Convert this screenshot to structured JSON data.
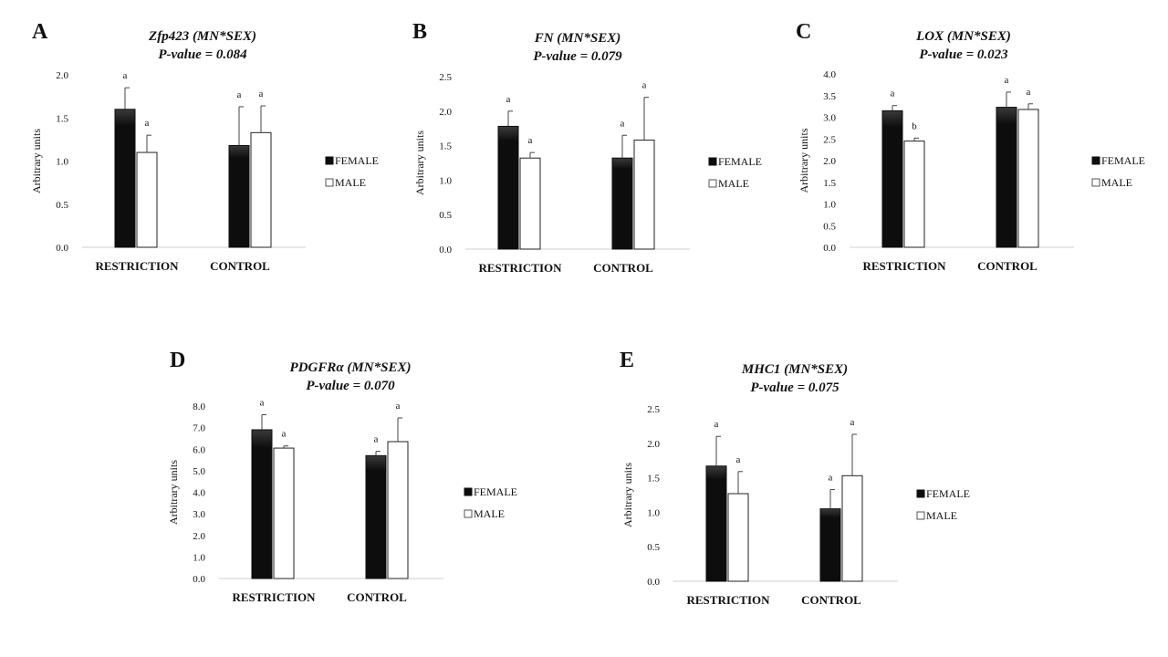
{
  "chart_data": [
    {
      "type": "bar",
      "panel": "A",
      "title": "Zfp423 (MN*SEX)",
      "subtitle": "P-value = 0.084",
      "ylabel": "Arbitrary units",
      "xlabel": "",
      "categories": [
        "RESTRICTION",
        "CONTROL"
      ],
      "ylim": [
        0,
        2.0
      ],
      "yticks": [
        "0.0",
        "0.5",
        "1.0",
        "1.5",
        "2.0"
      ],
      "series": [
        {
          "name": "FEMALE",
          "values": [
            1.6,
            1.18
          ],
          "errors": [
            0.25,
            0.45
          ],
          "labels": [
            "a",
            "a"
          ]
        },
        {
          "name": "MALE",
          "values": [
            1.1,
            1.33
          ],
          "errors": [
            0.2,
            0.31
          ],
          "labels": [
            "a",
            "a"
          ]
        }
      ],
      "legend": [
        "FEMALE",
        "MALE"
      ],
      "grid": false,
      "legend_position": "right"
    },
    {
      "type": "bar",
      "panel": "B",
      "title": "FN (MN*SEX)",
      "subtitle": "P-value = 0.079",
      "ylabel": "Arbitrary units",
      "xlabel": "",
      "categories": [
        "RESTRICTION",
        "CONTROL"
      ],
      "ylim": [
        0,
        2.5
      ],
      "yticks": [
        "0.0",
        "0.5",
        "1.0",
        "1.5",
        "2.0",
        "2.5"
      ],
      "series": [
        {
          "name": "FEMALE",
          "values": [
            1.78,
            1.32
          ],
          "errors": [
            0.22,
            0.33
          ],
          "labels": [
            "a",
            "a"
          ]
        },
        {
          "name": "MALE",
          "values": [
            1.32,
            1.58
          ],
          "errors": [
            0.08,
            0.62
          ],
          "labels": [
            "a",
            "a"
          ]
        }
      ],
      "legend": [
        "FEMALE",
        "MALE"
      ],
      "grid": false,
      "legend_position": "right"
    },
    {
      "type": "bar",
      "panel": "C",
      "title": "LOX (MN*SEX)",
      "subtitle": "P-value = 0.023",
      "ylabel": "Arbitrary units",
      "xlabel": "",
      "categories": [
        "RESTRICTION",
        "CONTROL"
      ],
      "ylim": [
        0,
        4.0
      ],
      "yticks": [
        "0.0",
        "0.5",
        "1.0",
        "1.5",
        "2.0",
        "2.5",
        "3.0",
        "3.5",
        "4.0"
      ],
      "series": [
        {
          "name": "FEMALE",
          "values": [
            3.15,
            3.23
          ],
          "errors": [
            0.12,
            0.35
          ],
          "labels": [
            "a",
            "a"
          ]
        },
        {
          "name": "MALE",
          "values": [
            2.45,
            3.18
          ],
          "errors": [
            0.07,
            0.13
          ],
          "labels": [
            "b",
            "a"
          ]
        }
      ],
      "legend": [
        "FEMALE",
        "MALE"
      ],
      "grid": false,
      "legend_position": "right"
    },
    {
      "type": "bar",
      "panel": "D",
      "title": "PDGFRα (MN*SEX)",
      "subtitle": "P-value = 0.070",
      "ylabel": "Arbitrary units",
      "xlabel": "",
      "categories": [
        "RESTRICTION",
        "CONTROL"
      ],
      "ylim": [
        0,
        8.0
      ],
      "yticks": [
        "0.0",
        "1.0",
        "2.0",
        "3.0",
        "4.0",
        "5.0",
        "6.0",
        "7.0",
        "8.0"
      ],
      "series": [
        {
          "name": "FEMALE",
          "values": [
            6.9,
            5.7
          ],
          "errors": [
            0.7,
            0.2
          ],
          "labels": [
            "a",
            "a"
          ]
        },
        {
          "name": "MALE",
          "values": [
            6.05,
            6.35
          ],
          "errors": [
            0.1,
            1.1
          ],
          "labels": [
            "a",
            "a"
          ]
        }
      ],
      "legend": [
        "FEMALE",
        "MALE"
      ],
      "grid": false,
      "legend_position": "right"
    },
    {
      "type": "bar",
      "panel": "E",
      "title": "MHC1 (MN*SEX)",
      "subtitle": "P-value = 0.075",
      "ylabel": "Arbitrary units",
      "xlabel": "",
      "categories": [
        "RESTRICTION",
        "CONTROL"
      ],
      "ylim": [
        0,
        2.5
      ],
      "yticks": [
        "0.0",
        "0.5",
        "1.0",
        "1.5",
        "2.0",
        "2.5"
      ],
      "series": [
        {
          "name": "FEMALE",
          "values": [
            1.67,
            1.05
          ],
          "errors": [
            0.43,
            0.28
          ],
          "labels": [
            "a",
            "a"
          ]
        },
        {
          "name": "MALE",
          "values": [
            1.27,
            1.53
          ],
          "errors": [
            0.32,
            0.6
          ],
          "labels": [
            "a",
            "a"
          ]
        }
      ],
      "legend": [
        "FEMALE",
        "MALE"
      ],
      "grid": false,
      "legend_position": "right"
    }
  ],
  "colors": {
    "female": "#0d0d0d",
    "male": "#ffffff",
    "axis": "#cfcfcf",
    "error": "#444444"
  }
}
